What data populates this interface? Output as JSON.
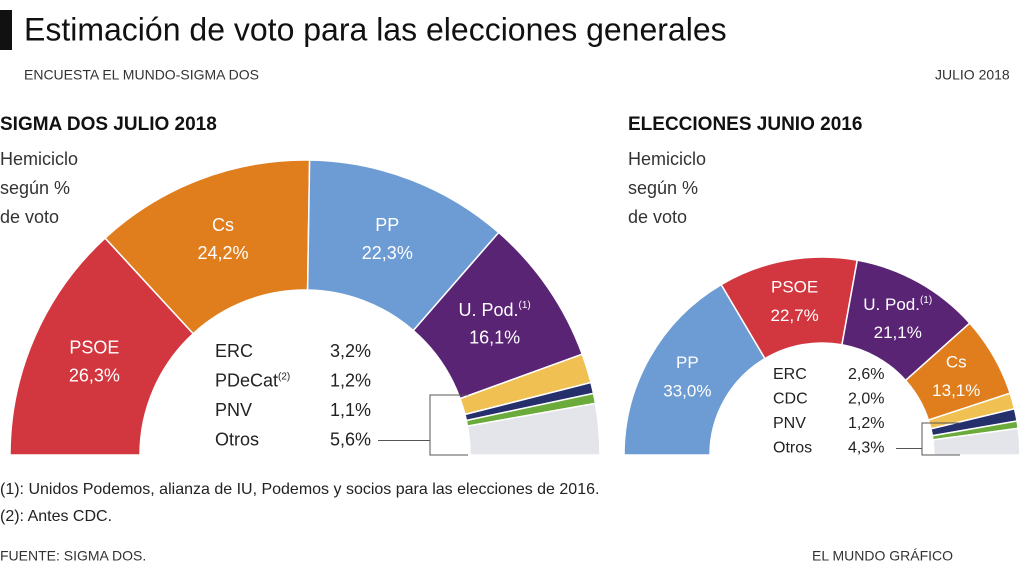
{
  "title": "Estimación de voto para las elecciones generales",
  "subtitle": "ENCUESTA EL MUNDO-SIGMA DOS",
  "date": "JULIO 2018",
  "footnotes": [
    "(1): Unidos Podemos, alianza de IU, Podemos y socios para las elecciones de 2016.",
    "(2): Antes CDC."
  ],
  "source": "FUENTE: SIGMA DOS.",
  "credit": "EL MUNDO GRÁFICO",
  "chart_data": [
    {
      "type": "hemicycle",
      "title": "SIGMA DOS JULIO 2018",
      "annotation": [
        "Hemiciclo",
        "según %",
        "de voto"
      ],
      "categories": [
        "PSOE",
        "Cs",
        "PP",
        "U. Pod.",
        "ERC",
        "PDeCat",
        "PNV",
        "Otros"
      ],
      "notes": [
        null,
        null,
        null,
        "(1)",
        null,
        "(2)",
        null,
        null
      ],
      "values": [
        26.3,
        24.2,
        22.3,
        16.1,
        3.2,
        1.2,
        1.1,
        5.6
      ],
      "value_labels": [
        "26,3%",
        "24,2%",
        "22,3%",
        "16,1%",
        "3,2%",
        "1,2%",
        "1,1%",
        "5,6%"
      ],
      "colors": [
        "#d2363f",
        "#e07d1c",
        "#6c9cd3",
        "#5a2475",
        "#f0c052",
        "#242f6b",
        "#6bab3b",
        "#e4e5ea"
      ]
    },
    {
      "type": "hemicycle",
      "title": "ELECCIONES JUNIO 2016",
      "annotation": [
        "Hemiciclo",
        "según %",
        "de voto"
      ],
      "categories": [
        "PP",
        "PSOE",
        "U. Pod.",
        "Cs",
        "ERC",
        "CDC",
        "PNV",
        "Otros"
      ],
      "notes": [
        null,
        null,
        "(1)",
        null,
        null,
        null,
        null,
        null
      ],
      "values": [
        33.0,
        22.7,
        21.1,
        13.1,
        2.6,
        2.0,
        1.2,
        4.3
      ],
      "value_labels": [
        "33,0%",
        "22,7%",
        "21,1%",
        "13,1%",
        "2,6%",
        "2,0%",
        "1,2%",
        "4,3%"
      ],
      "colors": [
        "#6c9cd3",
        "#d2363f",
        "#5a2475",
        "#e07d1c",
        "#f0c052",
        "#242f6b",
        "#6bab3b",
        "#e4e5ea"
      ]
    }
  ]
}
